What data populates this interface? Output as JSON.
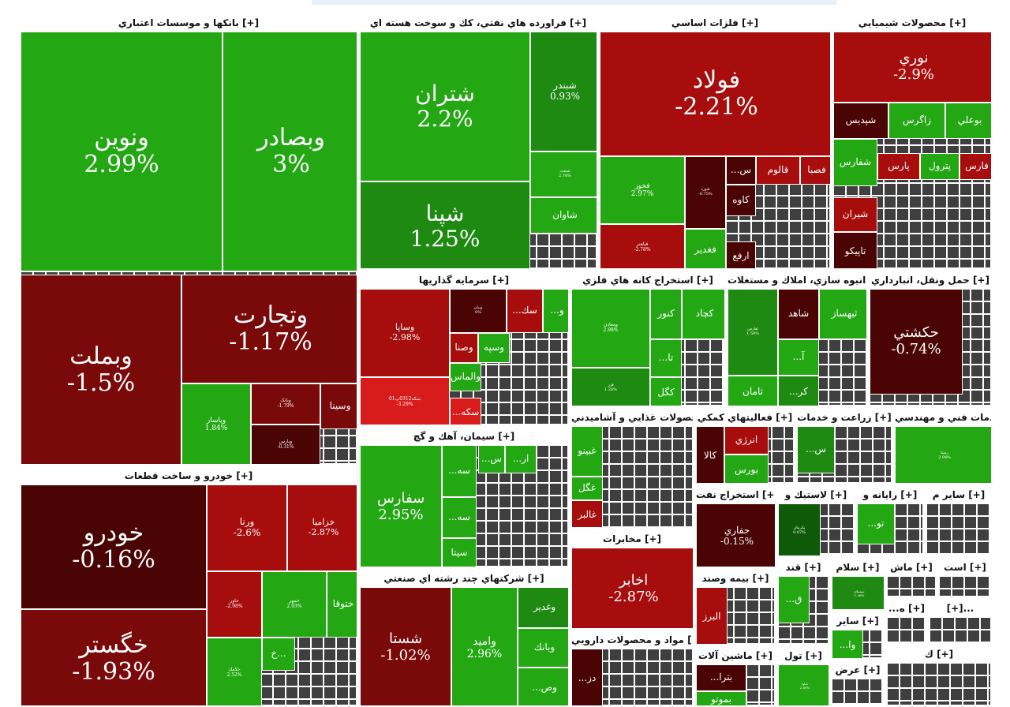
{
  "palette": {
    "up_bright": "#23a814",
    "up_mid": "#1e8a12",
    "up_dark": "#0f5a08",
    "down_dark": "#4a0404",
    "down_mid": "#7a0a0a",
    "down_red": "#a80d0d",
    "down_bright": "#d81b1b",
    "neutral": "#3f3f3f"
  },
  "chart_data": {
    "type": "treemap",
    "metric": "daily percent change",
    "sectors": [
      {
        "name": "بانکها و موسسات اعتباري [+]",
        "stocks": [
          {
            "name": "ونوين",
            "change": 2.99,
            "label": "2.99%"
          },
          {
            "name": "وبصادر",
            "change": 3,
            "label": "3%"
          },
          {
            "name": "وبملت",
            "change": -1.5,
            "label": "-1.5%"
          },
          {
            "name": "وتجارت",
            "change": -1.17,
            "label": "-1.17%"
          },
          {
            "name": "وپاسار",
            "change": 1.84,
            "label": "1.84%"
          },
          {
            "name": "وبانک",
            "change": -1.79,
            "label": "-1.79%"
          },
          {
            "name": "وپارس",
            "change": -0.31,
            "label": "-0.31%"
          },
          {
            "name": "وسينا",
            "change": -1.0
          }
        ]
      },
      {
        "name": "خودرو و ساخت قطعات [+]",
        "stocks": [
          {
            "name": "خودرو",
            "change": -0.16,
            "label": "-0.16%"
          },
          {
            "name": "خگستر",
            "change": -1.93,
            "label": "-1.93%"
          },
          {
            "name": "ورنا",
            "change": -2.6,
            "label": "-2.6%"
          },
          {
            "name": "خزاميا",
            "change": -2.87,
            "label": "-2.87%"
          },
          {
            "name": "خاور",
            "change": -2.98,
            "label": "-2.98%"
          },
          {
            "name": "خمهر",
            "change": 2.93,
            "label": "2.93%"
          },
          {
            "name": "ختوقا",
            "change": 2.5
          },
          {
            "name": "خ...",
            "change": 2.0
          },
          {
            "name": "خكمك",
            "change": 2.52,
            "label": "2.52%"
          }
        ]
      },
      {
        "name": "فراورده هاي نفتي، كك و سوخت هسته اي [+]",
        "stocks": [
          {
            "name": "شتران",
            "change": 2.2,
            "label": "2.2%"
          },
          {
            "name": "شپنا",
            "change": 1.25,
            "label": "1.25%"
          },
          {
            "name": "شبندر",
            "change": 0.93,
            "label": "0.93%"
          },
          {
            "name": "شنفت",
            "change": 2.78,
            "label": "2.78%"
          },
          {
            "name": "شاوان",
            "change": 2.5
          }
        ]
      },
      {
        "name": "فلزات اساسي [+]",
        "stocks": [
          {
            "name": "فولاد",
            "change": -2.21,
            "label": "-2.21%"
          },
          {
            "name": "فخوز",
            "change": 2.97,
            "label": "2.97%"
          },
          {
            "name": "فباهنر",
            "change": -2.78,
            "label": "-2.78%"
          },
          {
            "name": "فنورد",
            "change": -0.75,
            "label": "-0.75%"
          },
          {
            "name": "قالوم",
            "change": -2.5
          },
          {
            "name": "...س",
            "change": -0.5
          },
          {
            "name": "فصبا",
            "change": -2.0
          },
          {
            "name": "كاوه",
            "change": -0.3
          },
          {
            "name": "ارفع",
            "change": -0.5
          },
          {
            "name": "فغدير",
            "change": 2.5
          }
        ]
      },
      {
        "name": "محصولات شيميايي [+]",
        "stocks": [
          {
            "name": "نوري",
            "change": -2.9,
            "label": "-2.9%"
          },
          {
            "name": "شپديس",
            "change": -0.6
          },
          {
            "name": "زاگرس",
            "change": 2.5
          },
          {
            "name": "بوعلي",
            "change": 2.5
          },
          {
            "name": "شفارس",
            "change": 2.5
          },
          {
            "name": "پارس",
            "change": -2.6
          },
          {
            "name": "پترول",
            "change": 2.0
          },
          {
            "name": "فارس",
            "change": -2.5
          },
          {
            "name": "شيران",
            "change": -2.5
          },
          {
            "name": "تاپيكو",
            "change": -0.8
          }
        ]
      },
      {
        "name": "سرمايه گذاريها [+]",
        "stocks": [
          {
            "name": "وساپا",
            "change": -2.98,
            "label": "-2.98%"
          },
          {
            "name": "سكه0312پ01",
            "change": -3.29,
            "label": "-3.29%"
          },
          {
            "name": "وبيان",
            "change": 0,
            "label": "0%"
          },
          {
            "name": "...سك",
            "change": -2.5
          },
          {
            "name": "...و",
            "change": 2.5
          },
          {
            "name": "وصنا",
            "change": -2.9
          },
          {
            "name": "وسپه",
            "change": 2.5
          },
          {
            "name": "والماس",
            "change": 2.6
          },
          {
            "name": "...سكه",
            "change": -3.0
          }
        ]
      },
      {
        "name": "سيمان، آهك و گچ [+]",
        "stocks": [
          {
            "name": "سفارس",
            "change": 2.95,
            "label": "2.95%"
          },
          {
            "name": "...سه",
            "change": 2.5
          },
          {
            "name": "...سه",
            "change": 2.5
          },
          {
            "name": "سيتا",
            "change": 2.5
          },
          {
            "name": "...س",
            "change": 2.5
          },
          {
            "name": "...ار",
            "change": 2.5
          }
        ]
      },
      {
        "name": "شركتهاي چند رشته اي صنعتي [+]",
        "stocks": [
          {
            "name": "شستا",
            "change": -1.02,
            "label": "-1.02%"
          },
          {
            "name": "واميد",
            "change": 2.96,
            "label": "2.96%"
          },
          {
            "name": "وغدير",
            "change": 1.5
          },
          {
            "name": "وبانك",
            "change": 2.5
          },
          {
            "name": "...وص",
            "change": 2.5
          }
        ]
      },
      {
        "name": "استخراج كانه هاي فلزي [+]",
        "stocks": [
          {
            "name": "ومعادن",
            "change": 2.98,
            "label": "2.98%"
          },
          {
            "name": "كنور",
            "change": 2.5
          },
          {
            "name": "كچاد",
            "change": 2.5
          },
          {
            "name": "...تا",
            "change": 2.5
          },
          {
            "name": "فزر",
            "change": 1.28,
            "label": "1.28%"
          },
          {
            "name": "كگل",
            "change": 2.5
          }
        ]
      },
      {
        "name": "انبوه سازي، املاك و مستغلات [+]",
        "stocks": [
          {
            "name": "ثفارس",
            "change": 1.59,
            "label": "1.59%"
          },
          {
            "name": "شاهد",
            "change": -0.8
          },
          {
            "name": "ثبهساز",
            "change": 2.5
          },
          {
            "name": "...آ",
            "change": 2.5
          },
          {
            "name": "ثامان",
            "change": 2.5
          },
          {
            "name": "...كر",
            "change": 1.5
          }
        ]
      },
      {
        "name": "حمل ونقل، انبارداري [+]",
        "stocks": [
          {
            "name": "حكشتي",
            "change": -0.74,
            "label": "-0.74%"
          }
        ]
      },
      {
        "name": "محصولات غذايي و آشاميدني [+]",
        "stocks": [
          {
            "name": "غبينو",
            "change": 2.5
          },
          {
            "name": "غگل",
            "change": 2.5
          },
          {
            "name": "غالبر",
            "change": -2.8
          }
        ]
      },
      {
        "name": "فعاليتهاي كمكي [+]",
        "stocks": [
          {
            "name": "كالا",
            "change": -0.6
          },
          {
            "name": "انرژي",
            "change": -2.9
          },
          {
            "name": "بورس",
            "change": 2.5
          }
        ]
      },
      {
        "name": "زراعت و خدمات [+]",
        "stocks": [
          {
            "name": "...س",
            "change": 1.0
          }
        ]
      },
      {
        "name": "خدمات فني و مهندسي [+]",
        "stocks": [
          {
            "name": "رمپنا",
            "change": 2.94,
            "label": "2.94%"
          }
        ]
      },
      {
        "name": "استخراج نفت [+]",
        "stocks": [
          {
            "name": "حفاري",
            "change": -0.15,
            "label": "-0.15%"
          }
        ]
      },
      {
        "name": "لاستيك و [+]",
        "stocks": [
          {
            "name": "پكرمان",
            "change": 0.07,
            "label": "0.07%"
          }
        ]
      },
      {
        "name": "رايانه و [+]",
        "stocks": [
          {
            "name": "...تو",
            "change": 2.5
          }
        ]
      },
      {
        "name": "ساير م [+]",
        "stocks": []
      },
      {
        "name": "مخابرات [+]",
        "stocks": [
          {
            "name": "اخابر",
            "change": -2.87,
            "label": "-2.87%"
          }
        ]
      },
      {
        "name": "بيمه وصند [+]",
        "stocks": [
          {
            "name": "البرز",
            "change": -2.5
          }
        ]
      },
      {
        "name": "مواد و محصولات دارويي [+]",
        "stocks": [
          {
            "name": "...دز",
            "change": -0.8
          }
        ]
      },
      {
        "name": "ماشين آلات [+]",
        "stocks": [
          {
            "name": "...بترا",
            "change": -0.8
          },
          {
            "name": "بموتو",
            "change": 2.5
          }
        ]
      },
      {
        "name": "قند [+]",
        "stocks": [
          {
            "name": "...ق",
            "change": 2.5
          }
        ]
      },
      {
        "name": "سلام [+]",
        "stocks": [
          {
            "name": "سيسلام",
            "change": 1.36,
            "label": "1.36%"
          }
        ]
      },
      {
        "name": "ماش [+]",
        "stocks": []
      },
      {
        "name": "است [+]",
        "stocks": []
      },
      {
        "name": "ساير [+]",
        "stocks": [
          {
            "name": "...وا",
            "change": 2.5
          }
        ]
      },
      {
        "name": "تول [+]",
        "stocks": [
          {
            "name": "شاوا",
            "change": 2.89,
            "label": "2.89%"
          }
        ]
      },
      {
        "name": "عرض [+]",
        "stocks": []
      },
      {
        "name": "...ه [+]",
        "stocks": []
      },
      {
        "name": "[+]...",
        "stocks": []
      },
      {
        "name": "ك [+]",
        "stocks": []
      }
    ]
  }
}
